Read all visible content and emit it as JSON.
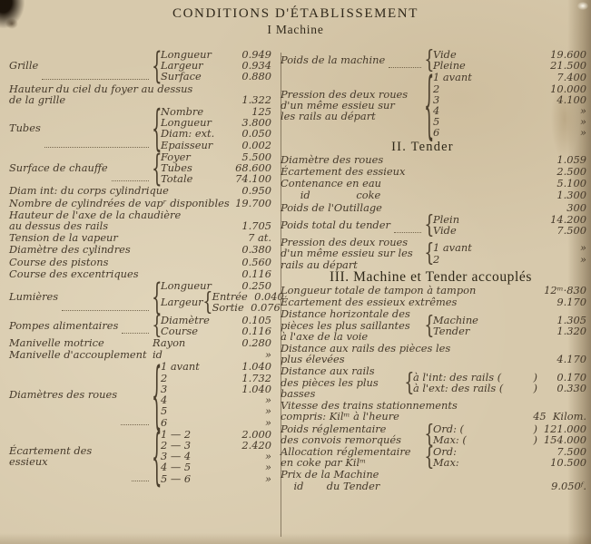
{
  "title": "CONDITIONS D'ÉTABLISSEMENT",
  "subtitle": "I Machine",
  "paper_color": "#d7c9ac",
  "ink_color": "#45392a",
  "ditto_mark": "»",
  "columns": {
    "left": {
      "rows": [
        {
          "label": "Grille",
          "dots": true,
          "items": [
            {
              "label": "Longueur",
              "value": "0.949"
            },
            {
              "label": "Largeur",
              "value": "0.934"
            },
            {
              "label": "Surface",
              "value": "0.880"
            }
          ]
        },
        {
          "label": "Hauteur du ciel du foyer au dessus\nde la grille",
          "value": "1.322"
        },
        {
          "label": "Tubes",
          "dots": true,
          "items": [
            {
              "label": "Nombre",
              "value": "125"
            },
            {
              "label": "Longueur",
              "value": "3.800"
            },
            {
              "label": "Diam: ext.",
              "value": "0.050"
            },
            {
              "label": "Epaisseur",
              "value": "0.002"
            }
          ]
        },
        {
          "label": "Surface de chauffe",
          "dots": true,
          "items": [
            {
              "label": "Foyer",
              "value": "5.500"
            },
            {
              "label": "Tubes",
              "value": "68.600"
            },
            {
              "label": "Totale",
              "value": "74.100"
            }
          ]
        },
        {
          "label": "Diam int: du corps cylindrique",
          "value": "0.950"
        },
        {
          "label": "Nombre de cylindrées de vapʳ disponibles",
          "value": "19.700"
        },
        {
          "label": "Hauteur de l'axe de la chaudière\nau dessus des rails",
          "value": "1.705"
        },
        {
          "label": "Tension de la vapeur",
          "value": "7 at."
        },
        {
          "label": "Diamètre des cylindres",
          "value": "0.380"
        },
        {
          "label": "Course des pistons",
          "value": "0.560"
        },
        {
          "label": "Course des excentriques",
          "value": "0.116"
        },
        {
          "label": "Lumières",
          "dots": true,
          "items": [
            {
              "label": "Longueur",
              "value": "0.250"
            },
            {
              "label": "Largeur",
              "items": [
                {
                  "label": "Entrée",
                  "value": "0.040"
                },
                {
                  "label": "Sortie",
                  "value": "0.076"
                }
              ]
            }
          ]
        },
        {
          "label": "Pompes alimentaires",
          "dots": true,
          "items": [
            {
              "label": "Diamètre",
              "value": "0.105"
            },
            {
              "label": "Course",
              "value": "0.116"
            }
          ]
        },
        {
          "label": "Manivelle motrice",
          "brace": false,
          "items": [
            {
              "label": "Rayon",
              "value": "0.280"
            }
          ]
        },
        {
          "label": "Manivelle d'accouplement",
          "brace": false,
          "items": [
            {
              "label": "id",
              "value": "»"
            }
          ]
        },
        {
          "label": "Diamètres des roues",
          "dots": true,
          "items": [
            {
              "label": "1 avant",
              "value": "1.040"
            },
            {
              "label": "2",
              "value": "1.732"
            },
            {
              "label": "3",
              "value": "1.040"
            },
            {
              "label": "4",
              "value": "»"
            },
            {
              "label": "5",
              "value": "»"
            },
            {
              "label": "6",
              "value": "»"
            }
          ]
        },
        {
          "label": "Écartement des essieux",
          "dots": true,
          "items": [
            {
              "label": "1 — 2",
              "value": "2.000"
            },
            {
              "label": "2 — 3",
              "value": "2.420"
            },
            {
              "label": "3 — 4",
              "value": "»"
            },
            {
              "label": "4 — 5",
              "value": "»"
            },
            {
              "label": "5 — 6",
              "value": "»"
            }
          ]
        }
      ]
    },
    "right": {
      "rows": [
        {
          "label": "Poids de la machine",
          "dots": true,
          "items": [
            {
              "label": "Vide",
              "value": "19.600"
            },
            {
              "label": "Pleine",
              "value": "21.500"
            }
          ]
        },
        {
          "label": "Pression des deux roues\nd'un même essieu sur\nles rails au départ",
          "items": [
            {
              "label": "1 avant",
              "value": "7.400"
            },
            {
              "label": "2",
              "value": "10.000"
            },
            {
              "label": "3",
              "value": "4.100"
            },
            {
              "label": "4",
              "value": "»"
            },
            {
              "label": "5",
              "value": "»"
            },
            {
              "label": "6",
              "value": "»"
            }
          ]
        },
        {
          "heading": "II. Tender",
          "level": 2
        },
        {
          "label": "Diamètre des roues",
          "value": "1.059"
        },
        {
          "label": "Écartement des essieux",
          "value": "2.500"
        },
        {
          "label": "Contenance en eau",
          "value": "5.100"
        },
        {
          "label": "      id              coke",
          "value": "1.300"
        },
        {
          "label": "Poids de l'Outillage",
          "value": "300"
        },
        {
          "label": "Poids total du tender",
          "dots": true,
          "items": [
            {
              "label": "Plein",
              "value": "14.200"
            },
            {
              "label": "Vide",
              "value": "7.500"
            }
          ]
        },
        {
          "label": "Pression des deux roues\nd'un même essieu sur les\nrails au départ",
          "items": [
            {
              "label": "1 avant",
              "value": "»"
            },
            {
              "label": "2",
              "value": "»"
            }
          ]
        },
        {
          "heading": "III. Machine et Tender accouplés",
          "level": 3
        },
        {
          "label": "Longueur totale de tampon à tampon",
          "value": "12ᵐ·830"
        },
        {
          "label": "Écartement des essieux extrêmes",
          "value": "9.170"
        },
        {
          "label": "Distance horizontale des\npièces les plus saillantes\nà l'axe de la voie",
          "items": [
            {
              "label": "Machine",
              "value": "1.305"
            },
            {
              "label": "Tender",
              "value": "1.320"
            }
          ]
        },
        {
          "label": "Distance aux rails des pièces les\nplus élevées",
          "value": "4.170"
        },
        {
          "label": "Distance aux rails\ndes pièces les plus\nbasses",
          "size": "wide",
          "items": [
            {
              "label": "à l'int: des rails (",
              "close": ")",
              "value": "0.170"
            },
            {
              "label": "à l'ext: des rails (",
              "close": ")",
              "value": "0.330"
            }
          ]
        },
        {
          "label": "Vitesse des trains stationnements\ncompris: Kilᵐ à l'heure",
          "value": "45  Kilom."
        },
        {
          "label": "Poids réglementaire\ndes convois remorqués",
          "items": [
            {
              "label": "Ord: (",
              "close": ")",
              "value": "121.000"
            },
            {
              "label": "Max: (",
              "close": ")",
              "value": "154.000"
            }
          ]
        },
        {
          "label": "Allocation réglementaire\nen coke par Kilᵐ",
          "items": [
            {
              "label": "Ord:",
              "value": "7.500"
            },
            {
              "label": "Max:",
              "value": "10.500"
            }
          ]
        },
        {
          "label": "Prix de la Machine\n    id       du Tender",
          "value": "9.050ᶠ."
        }
      ]
    }
  }
}
